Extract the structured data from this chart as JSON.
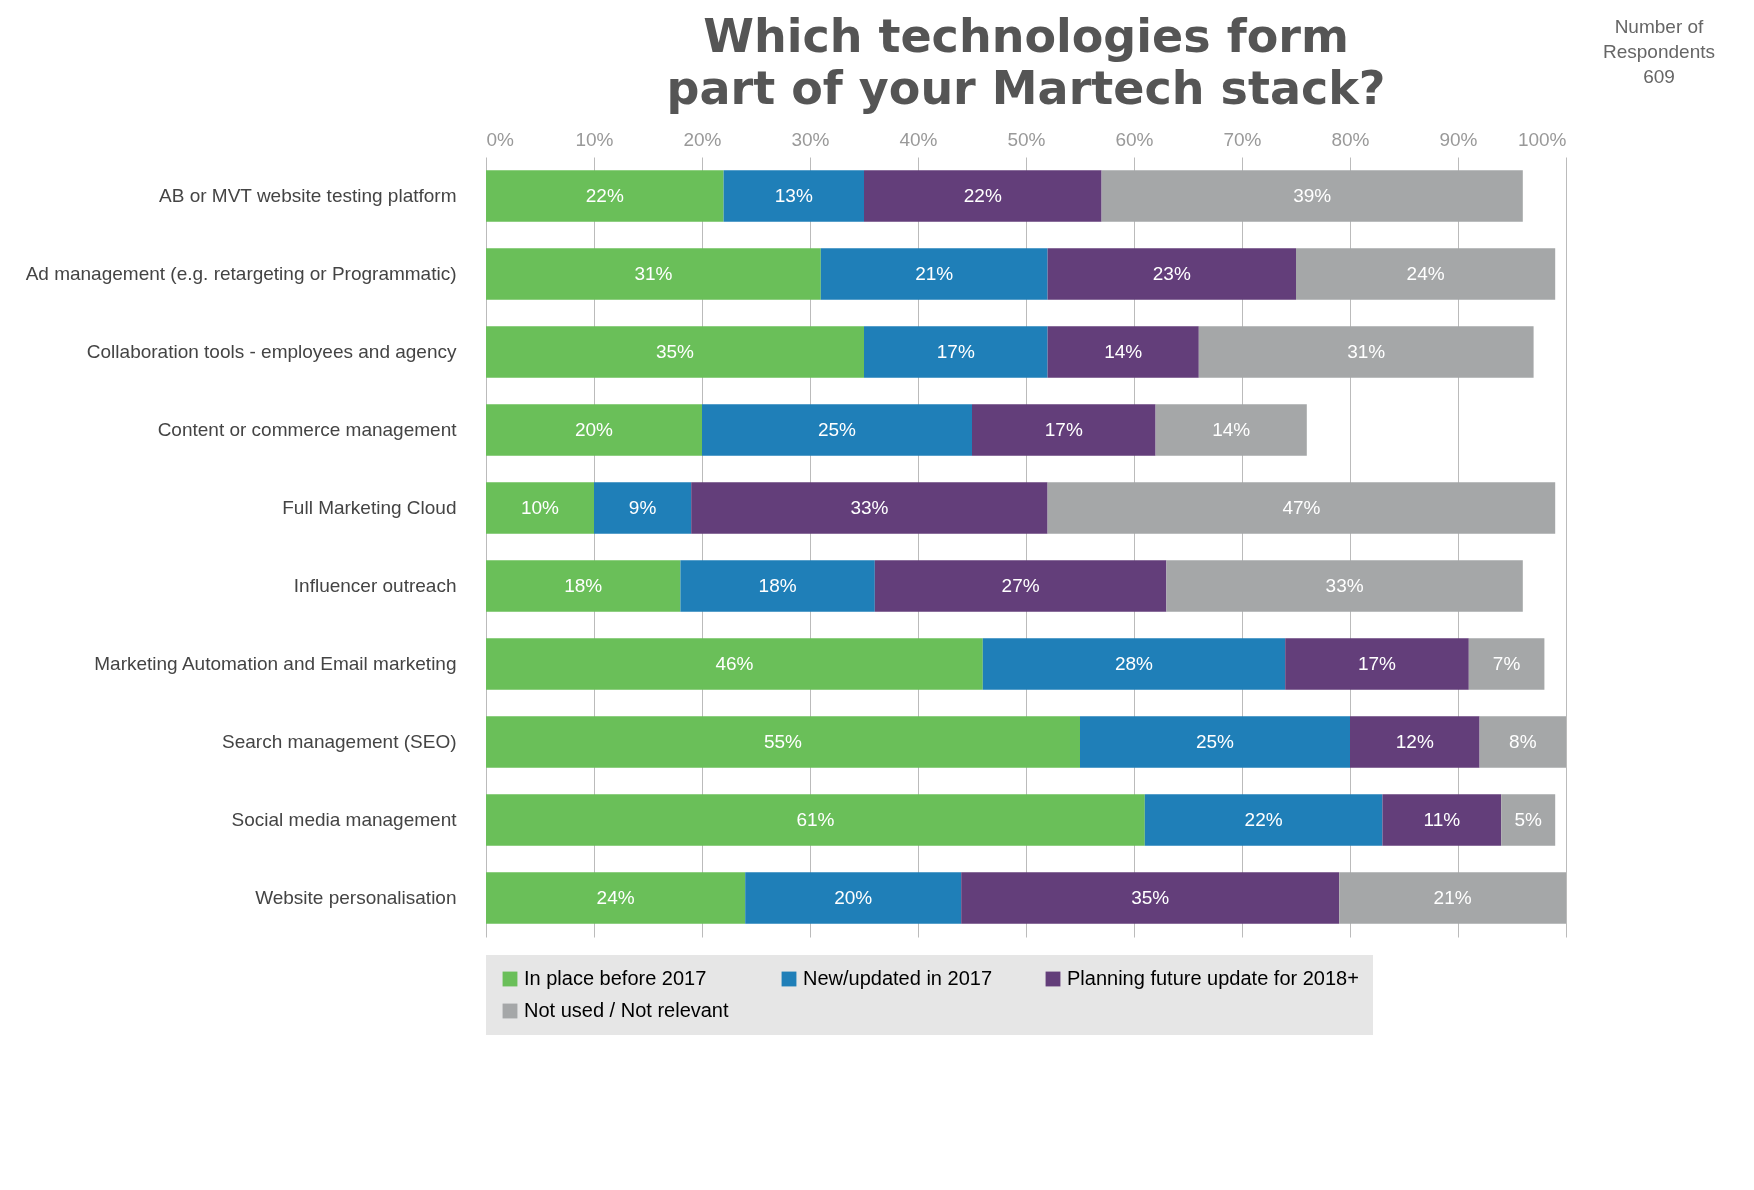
{
  "chart_data": {
    "type": "bar",
    "orientation": "horizontal",
    "stacked": true,
    "title": "Which technologies form part of your Martech stack?",
    "annotations": [
      "Number of Respondents 609"
    ],
    "categories": [
      "AB or MVT website testing platform",
      "Ad management (e.g. retargeting or Programmatic)",
      "Collaboration tools - employees and agency",
      "Content or commerce management",
      "Full Marketing Cloud",
      "Influencer outreach",
      "Marketing Automation and Email marketing",
      "Search management (SEO)",
      "Social media management",
      "Website personalisation"
    ],
    "series": [
      {
        "name": "In place before 2017",
        "color": "#6abf59",
        "values": [
          22,
          31,
          35,
          20,
          10,
          18,
          46,
          55,
          61,
          24
        ],
        "value_labels": [
          "22%",
          "31%",
          "35%",
          "20%",
          "10%",
          "18%",
          "46%",
          "55%",
          "61%",
          "24%"
        ]
      },
      {
        "name": "New/updated in 2017",
        "color": "#1f7fb8",
        "values": [
          13,
          21,
          17,
          25,
          9,
          18,
          28,
          25,
          22,
          20
        ],
        "value_labels": [
          "13%",
          "21%",
          "17%",
          "25%",
          "9%",
          "18%",
          "28%",
          "25%",
          "22%",
          "20%"
        ]
      },
      {
        "name": "Planning future update for 2018+",
        "color": "#633e7a",
        "values": [
          22,
          23,
          14,
          17,
          33,
          27,
          17,
          12,
          11,
          35
        ],
        "value_labels": [
          "22%",
          "23%",
          "14%",
          "17%",
          "33%",
          "27%",
          "17%",
          "12%",
          "11%",
          "35%"
        ]
      },
      {
        "name": "Not used / Not relevant",
        "color": "#a5a7a8",
        "values": [
          39,
          24,
          31,
          14,
          47,
          33,
          7,
          8,
          5,
          21
        ],
        "value_labels": [
          "39%",
          "24%",
          "31%",
          "14%",
          "47%",
          "33%",
          "7%",
          "8%",
          "5%",
          "21%"
        ]
      }
    ],
    "xlim": [
      0,
      100
    ],
    "xticks": [
      {
        "value": 0,
        "label": "0%"
      },
      {
        "value": 10,
        "label": "10%"
      },
      {
        "value": 20,
        "label": "20%"
      },
      {
        "value": 30,
        "label": "30%"
      },
      {
        "value": 40,
        "label": "40%"
      },
      {
        "value": 50,
        "label": "50%"
      },
      {
        "value": 60,
        "label": "60%"
      },
      {
        "value": 70,
        "label": "70%"
      },
      {
        "value": 80,
        "label": "80%"
      },
      {
        "value": 90,
        "label": "90%"
      },
      {
        "value": 100,
        "label": "100%"
      }
    ],
    "grid": "x",
    "legend": "bottom"
  }
}
